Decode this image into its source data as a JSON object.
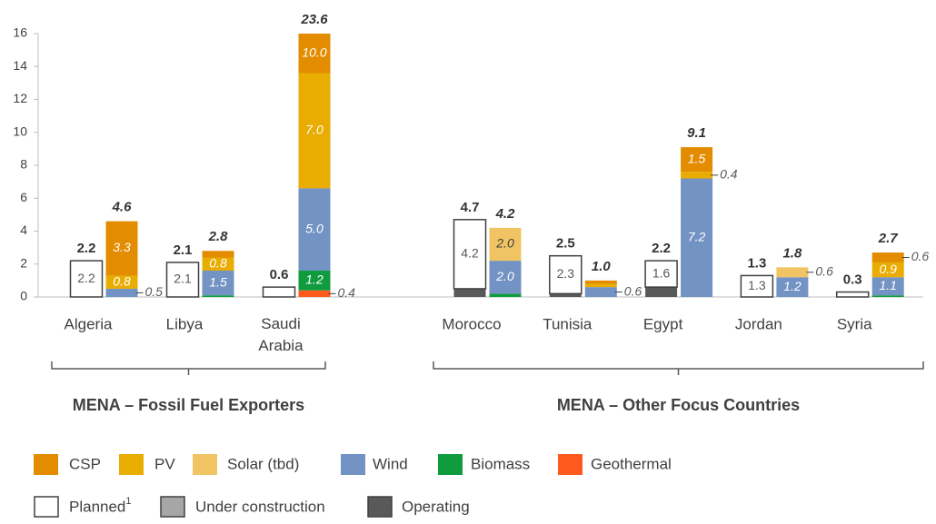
{
  "chart_data": {
    "type": "bar",
    "groups": [
      {
        "label": "MENA – Fossil Fuel Exporters",
        "categories": [
          "Algeria",
          "Libya",
          "Saudi Arabia"
        ]
      },
      {
        "label": "MENA – Other Focus Countries",
        "categories": [
          "Morocco",
          "Tunisia",
          "Egypt",
          "Jordan",
          "Syria"
        ]
      }
    ],
    "ylim": [
      0,
      16
    ],
    "yticks": [
      0,
      2,
      4,
      6,
      8,
      10,
      12,
      14,
      16
    ],
    "status_series": [
      {
        "name": "Planned",
        "footnote_mark": "1",
        "color": "#ffffff",
        "values": [
          2.2,
          2.1,
          0.6,
          4.2,
          2.3,
          1.6,
          1.3,
          0.3
        ],
        "value_labels": [
          "2.2",
          "2.1",
          null,
          "4.2",
          "2.3",
          "1.6",
          "1.3",
          null
        ]
      },
      {
        "name": "Under construction",
        "color": "#a6a6a6",
        "values": [
          0,
          0,
          0,
          0,
          0,
          0,
          0,
          0
        ]
      },
      {
        "name": "Operating",
        "color": "#595959",
        "values": [
          0,
          0,
          0,
          0.5,
          0.2,
          0.6,
          0,
          0
        ]
      }
    ],
    "status_totals": [
      "2.2",
      "2.1",
      "0.6",
      "4.7",
      "2.5",
      "2.2",
      "1.3",
      "0.3"
    ],
    "tech_series": [
      {
        "name": "CSP",
        "color": "#e38c00",
        "values": [
          3.3,
          0.4,
          10.0,
          0,
          0.2,
          1.5,
          0,
          0.6
        ],
        "value_labels": [
          "3.3",
          null,
          "10.0",
          null,
          null,
          "1.5",
          null,
          "0.6"
        ]
      },
      {
        "name": "PV",
        "color": "#e8ad00",
        "values": [
          0.8,
          0.8,
          7.0,
          0,
          0.2,
          0.4,
          0,
          0.9
        ],
        "value_labels": [
          "0.8",
          "0.8",
          "7.0",
          null,
          null,
          "0.4",
          null,
          "0.9"
        ]
      },
      {
        "name": "Solar (tbd)",
        "color": "#f0c462",
        "values": [
          0,
          0,
          0,
          2.0,
          0,
          0,
          0.6,
          0
        ],
        "value_labels": [
          null,
          null,
          null,
          "2.0",
          null,
          null,
          "0.6",
          null
        ]
      },
      {
        "name": "Wind",
        "color": "#7293c3",
        "values": [
          0.5,
          1.5,
          5.0,
          2.0,
          0.6,
          7.2,
          1.2,
          1.1
        ],
        "value_labels": [
          "0.5",
          "1.5",
          "5.0",
          "2.0",
          "0.6",
          "7.2",
          "1.2",
          "1.1"
        ]
      },
      {
        "name": "Biomass",
        "color": "#109b3f",
        "values": [
          0,
          0.1,
          1.2,
          0.2,
          0,
          0,
          0,
          0.1
        ],
        "value_labels": [
          null,
          null,
          "1.2",
          null,
          null,
          null,
          null,
          null
        ]
      },
      {
        "name": "Geothermal",
        "color": "#ff5a1e",
        "values": [
          0,
          0,
          0.4,
          0,
          0,
          0,
          0,
          0
        ],
        "value_labels": [
          null,
          null,
          "0.4",
          null,
          null,
          null,
          null,
          null
        ]
      }
    ],
    "tech_totals": [
      "4.6",
      "2.8",
      "23.6",
      "4.2",
      "1.0",
      "9.1",
      "1.8",
      "2.7"
    ]
  }
}
